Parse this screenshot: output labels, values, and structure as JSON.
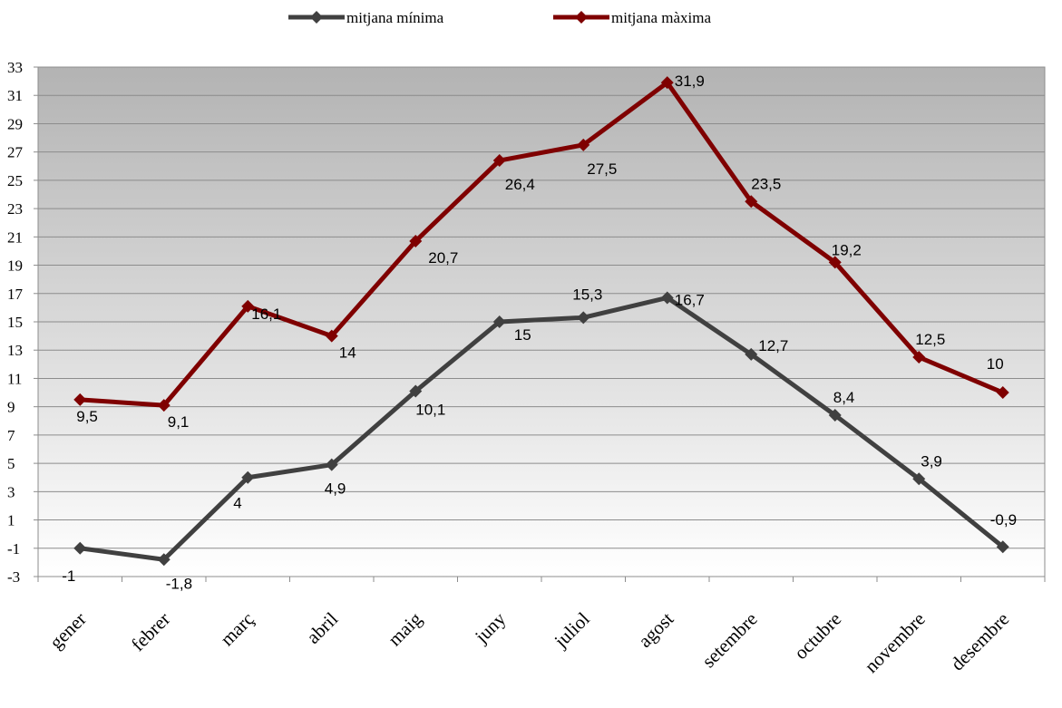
{
  "chart_data": {
    "type": "line",
    "categories": [
      "gener",
      "febrer",
      "març",
      "abril",
      "maig",
      "juny",
      "juliol",
      "agost",
      "setembre",
      "octubre",
      "novembre",
      "desembre"
    ],
    "series": [
      {
        "name": "mitjana mínima",
        "color": "#404040",
        "values": [
          -1,
          -1.8,
          4,
          4.9,
          10.1,
          15,
          15.3,
          16.7,
          12.7,
          8.4,
          3.9,
          -0.9
        ],
        "labels": [
          "-1",
          "-1,8",
          "4",
          "4,9",
          "10,1",
          "15",
          "15,3",
          "16,7",
          "12,7",
          "8,4",
          "3,9",
          "-0,9"
        ]
      },
      {
        "name": "mitjana màxima",
        "color": "#7f0000",
        "values": [
          9.5,
          9.1,
          16.1,
          14,
          20.7,
          26.4,
          27.5,
          31.9,
          23.5,
          19.2,
          12.5,
          10
        ],
        "labels": [
          "9,5",
          "9,1",
          "16,1",
          "14",
          "20,7",
          "26,4",
          "27,5",
          "31,9",
          "23,5",
          "19,2",
          "12,5",
          "10"
        ]
      }
    ],
    "ylim": [
      -3,
      33
    ],
    "yticks": [
      -3,
      -1,
      1,
      3,
      5,
      7,
      9,
      11,
      13,
      15,
      17,
      19,
      21,
      23,
      25,
      27,
      29,
      31,
      33
    ],
    "grid": true,
    "legend": "top-center",
    "title": "",
    "xlabel": "",
    "ylabel": ""
  }
}
